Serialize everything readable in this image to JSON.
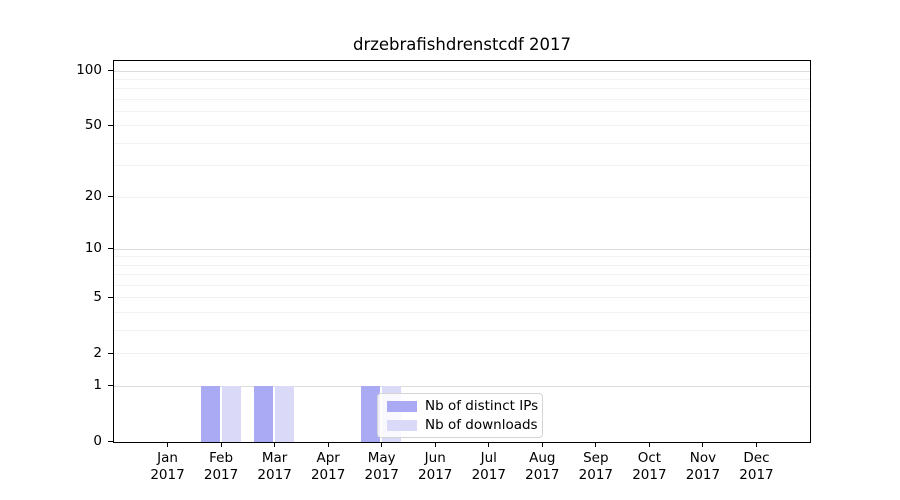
{
  "figure": {
    "title": "drzebrafishdrenstcdf 2017"
  },
  "colors": {
    "distinct_ips": "#aaaaf4",
    "downloads": "#dadaf8",
    "grid_major": "#dcdcdc",
    "grid_minor": "#f2f2f2",
    "axis": "#000000",
    "legend_border": "#d5d5d5",
    "legend_bg": "rgba(255,255,255,0.8)"
  },
  "legend": {
    "items": [
      {
        "label": "Nb of distinct IPs",
        "color": "#aaaaf4"
      },
      {
        "label": "Nb of downloads",
        "color": "#dadaf8"
      }
    ]
  },
  "chart_data": {
    "type": "bar",
    "title": "drzebrafishdrenstcdf 2017",
    "x": {
      "months": [
        "Jan",
        "Feb",
        "Mar",
        "Apr",
        "May",
        "Jun",
        "Jul",
        "Aug",
        "Sep",
        "Oct",
        "Nov",
        "Dec"
      ],
      "year": "2017"
    },
    "series": [
      {
        "name": "Nb of distinct IPs",
        "values": [
          0,
          1,
          1,
          0,
          1,
          0,
          0,
          0,
          0,
          0,
          0,
          0
        ]
      },
      {
        "name": "Nb of downloads",
        "values": [
          0,
          1,
          1,
          0,
          1,
          0,
          0,
          0,
          0,
          0,
          0,
          0
        ]
      }
    ],
    "y_axis": {
      "scale": "log10(1+y)",
      "ylim": [
        0,
        100
      ],
      "ticks": [
        0,
        1,
        2,
        5,
        10,
        20,
        50,
        100
      ],
      "major_gridlines": [
        1,
        10,
        100
      ],
      "minor_gridlines": [
        2,
        3,
        4,
        5,
        6,
        7,
        8,
        9,
        20,
        30,
        40,
        50,
        60,
        70,
        80,
        90
      ]
    },
    "grid": "horizontal",
    "legend_position": "inside lower center-right"
  }
}
